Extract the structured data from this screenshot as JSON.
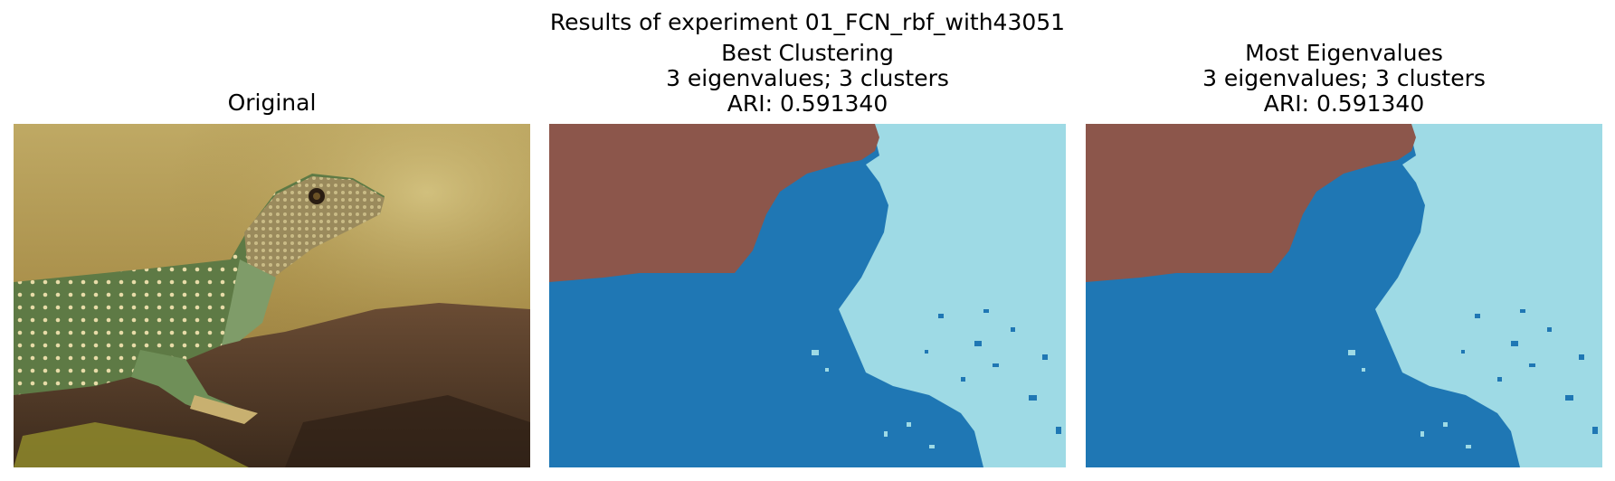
{
  "figure": {
    "suptitle": "Results of experiment 01_FCN_rbf_with43051"
  },
  "panels": [
    {
      "title_lines": [
        "Original"
      ]
    },
    {
      "title_lines": [
        "Best Clustering",
        "3 eigenvalues; 3 clusters",
        "ARI: 0.591340"
      ]
    },
    {
      "title_lines": [
        "Most Eigenvalues",
        "3 eigenvalues; 3 clusters",
        "ARI: 0.591340"
      ]
    }
  ],
  "colors": {
    "cluster_brown": "#8c564b",
    "cluster_blue": "#1f77b4",
    "cluster_lightblue": "#9edae5"
  }
}
